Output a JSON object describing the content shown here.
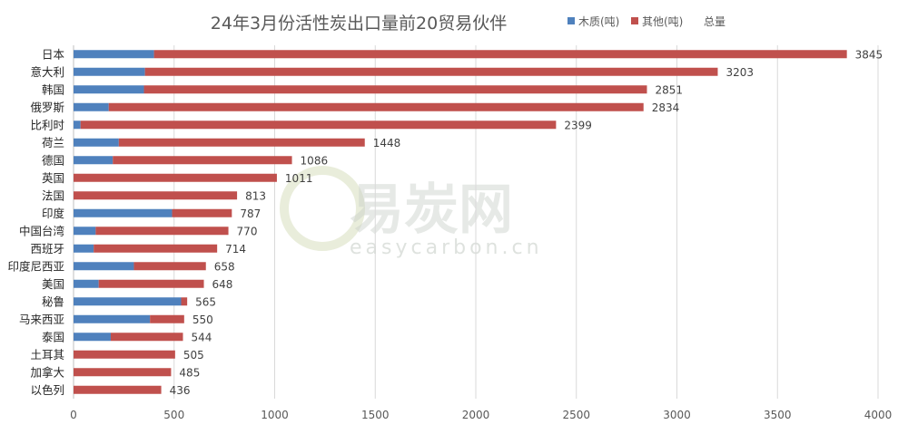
{
  "chart_data": {
    "type": "bar",
    "orientation": "horizontal",
    "stacked": true,
    "title": "24年3月份活性炭出口量前20贸易伙伴",
    "categories": [
      "日本",
      "意大利",
      "韩国",
      "俄罗斯",
      "比利时",
      "荷兰",
      "德国",
      "英国",
      "法国",
      "印度",
      "中国台湾",
      "西班牙",
      "印度尼西亚",
      "美国",
      "秘鲁",
      "马来西亚",
      "泰国",
      "土耳其",
      "加拿大",
      "以色列"
    ],
    "series": [
      {
        "name": "木质(吨)",
        "color": "#4f81bd",
        "values": [
          400,
          355,
          350,
          175,
          35,
          225,
          195,
          0,
          0,
          490,
          110,
          100,
          300,
          125,
          535,
          380,
          185,
          0,
          0,
          0
        ]
      },
      {
        "name": "其他(吨)",
        "color": "#c0504d",
        "values": [
          3445,
          2848,
          2501,
          2659,
          2364,
          1223,
          891,
          1011,
          813,
          297,
          660,
          614,
          358,
          523,
          30,
          170,
          359,
          505,
          485,
          436
        ]
      }
    ],
    "totals_name": "总量",
    "totals": [
      3845,
      3203,
      2851,
      2834,
      2399,
      1448,
      1086,
      1011,
      813,
      787,
      770,
      714,
      658,
      648,
      565,
      550,
      544,
      505,
      485,
      436
    ],
    "xlim": [
      0,
      4000
    ],
    "xticks": [
      "0",
      "500",
      "1000",
      "1500",
      "2000",
      "2500",
      "3000",
      "3500",
      "4000"
    ],
    "grid": true,
    "legend_position": "top-right"
  },
  "watermark": {
    "text": "易炭网",
    "subtext": "easycarbon.cn"
  }
}
